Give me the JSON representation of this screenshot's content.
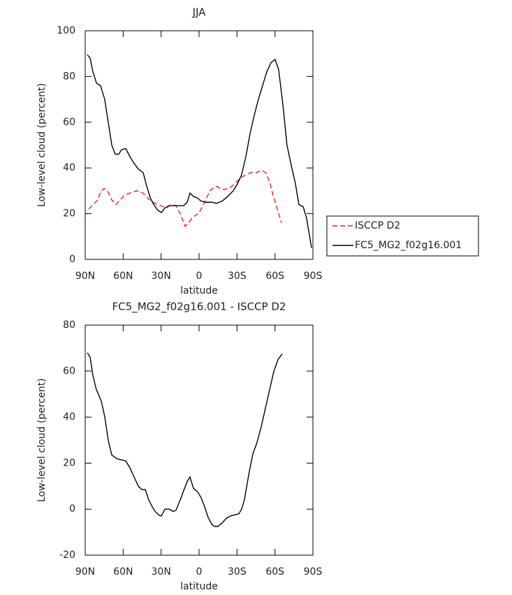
{
  "chart_data": [
    {
      "type": "line",
      "title": "JJA",
      "x_label": "latitude",
      "y_label": "Low-level cloud (percent)",
      "xlim": [
        90,
        -90
      ],
      "xticks": [
        {
          "value": 90,
          "label": "90N"
        },
        {
          "value": 60,
          "label": "60N"
        },
        {
          "value": 30,
          "label": "30N"
        },
        0,
        {
          "value": -30,
          "label": "30S"
        },
        {
          "value": -60,
          "label": "60S"
        },
        {
          "value": -90,
          "label": "90S"
        }
      ],
      "ylim": [
        0,
        100
      ],
      "yticks": [
        0,
        20,
        40,
        60,
        80,
        100
      ],
      "legend": "right",
      "series": [
        {
          "name": "ISCCP D2",
          "color": "#e8211c",
          "line_style": "dashed",
          "x": [
            87.2,
            83.9,
            80.1,
            77.9,
            75.1,
            72.3,
            69,
            65.7,
            62.4,
            59.1,
            54.7,
            49.2,
            44.2,
            39.2,
            34.8,
            30.4,
            26,
            21.6,
            18.3,
            14.9,
            11.1,
            8.3,
            5,
            0.6,
            -2.7,
            -6,
            -9.3,
            -13.7,
            -18.2,
            -23.7,
            -28.1,
            -32.5,
            -37,
            -41.4,
            -45.8,
            -49.2,
            -52.5,
            -55.8,
            -58.5,
            -62.4,
            -65.2
          ],
          "values": [
            22,
            24,
            26,
            29.5,
            31,
            30,
            26,
            24,
            26,
            28,
            29,
            30,
            29,
            26,
            24.5,
            23.5,
            22.5,
            24,
            23.5,
            20,
            14.5,
            16,
            18.5,
            20,
            23,
            27,
            30.5,
            32,
            30.5,
            31,
            33,
            35.5,
            37,
            38,
            38,
            39,
            38,
            34,
            28,
            21,
            16
          ]
        },
        {
          "name": "FC5_MG2_f02g16.001",
          "color": "#000000",
          "line_style": "solid",
          "x": [
            88.3,
            86.1,
            83.9,
            81,
            77.9,
            74.6,
            71.8,
            69,
            66.3,
            63.5,
            61.3,
            58,
            54.7,
            51.4,
            48,
            44.2,
            41.4,
            38.6,
            35.9,
            32.6,
            29.8,
            27,
            23.7,
            19.3,
            14.9,
            12.2,
            9.4,
            7.2,
            4.4,
            1.7,
            -1.6,
            -5.5,
            -10.4,
            -13.7,
            -18.2,
            -22.6,
            -27,
            -30.3,
            -33.6,
            -37,
            -40.3,
            -43.6,
            -46.9,
            -50.2,
            -53.5,
            -56.8,
            -60.1,
            -62.9,
            -66.2,
            -69.5,
            -72.9,
            -76.2,
            -78.9,
            -82.3,
            -85,
            -88.9
          ],
          "values": [
            89.5,
            88,
            82,
            77,
            76,
            70,
            60,
            50,
            46,
            46,
            48,
            48.5,
            45,
            42,
            39.5,
            38,
            32,
            27,
            24,
            21.5,
            20.5,
            22.5,
            23.5,
            23.5,
            23.5,
            23.5,
            25,
            29,
            27.5,
            27,
            25.5,
            25,
            25,
            24.5,
            25.5,
            27.5,
            30,
            33,
            37,
            45,
            55,
            63,
            70,
            76,
            82,
            86,
            87.5,
            83,
            68,
            50,
            41,
            33,
            24,
            23,
            18,
            5
          ]
        }
      ]
    },
    {
      "type": "line",
      "title": "FC5_MG2_f02g16.001 - ISCCP D2",
      "x_label": "latitude",
      "y_label": "Low-level cloud (percent)",
      "xlim": [
        90,
        -90
      ],
      "xticks": [
        {
          "value": 90,
          "label": "90N"
        },
        {
          "value": 60,
          "label": "60N"
        },
        {
          "value": 30,
          "label": "30N"
        },
        0,
        {
          "value": -30,
          "label": "30S"
        },
        {
          "value": -60,
          "label": "60S"
        },
        {
          "value": -90,
          "label": "90S"
        }
      ],
      "ylim": [
        -20,
        80
      ],
      "yticks": [
        -20,
        0,
        20,
        40,
        60,
        80
      ],
      "series": [
        {
          "color": "#000000",
          "line_style": "solid",
          "x": [
            88.3,
            86.1,
            83.9,
            81.2,
            77.3,
            74.5,
            71.8,
            69,
            65.1,
            62.4,
            58,
            54.7,
            51.4,
            48,
            45.3,
            42.5,
            39.8,
            37,
            34.8,
            31.5,
            29.8,
            27,
            23.7,
            20.4,
            18.3,
            14.9,
            12.2,
            9.4,
            7.2,
            4.4,
            1.1,
            -1.6,
            -4.4,
            -7.1,
            -9.9,
            -12.2,
            -14.9,
            -18.2,
            -21.5,
            -24.8,
            -28.1,
            -31.5,
            -33.6,
            -35.8,
            -38,
            -40.3,
            -42.5,
            -45.8,
            -49.2,
            -52.5,
            -55.8,
            -59.1,
            -62.4,
            -65.7
          ],
          "values": [
            68,
            66,
            58,
            52,
            47,
            40,
            30,
            23.5,
            22,
            21.5,
            21,
            18,
            14,
            10,
            8.5,
            8.5,
            4,
            1,
            -1,
            -2.7,
            -3,
            0,
            0,
            -1,
            -0.5,
            4,
            8,
            12,
            14,
            9,
            7.5,
            5,
            1,
            -3.5,
            -6.5,
            -7.5,
            -7.5,
            -6,
            -4,
            -3,
            -2.5,
            -2,
            0,
            4,
            11,
            18,
            24,
            29,
            36,
            44,
            52,
            60,
            65,
            67.5
          ]
        }
      ]
    }
  ]
}
